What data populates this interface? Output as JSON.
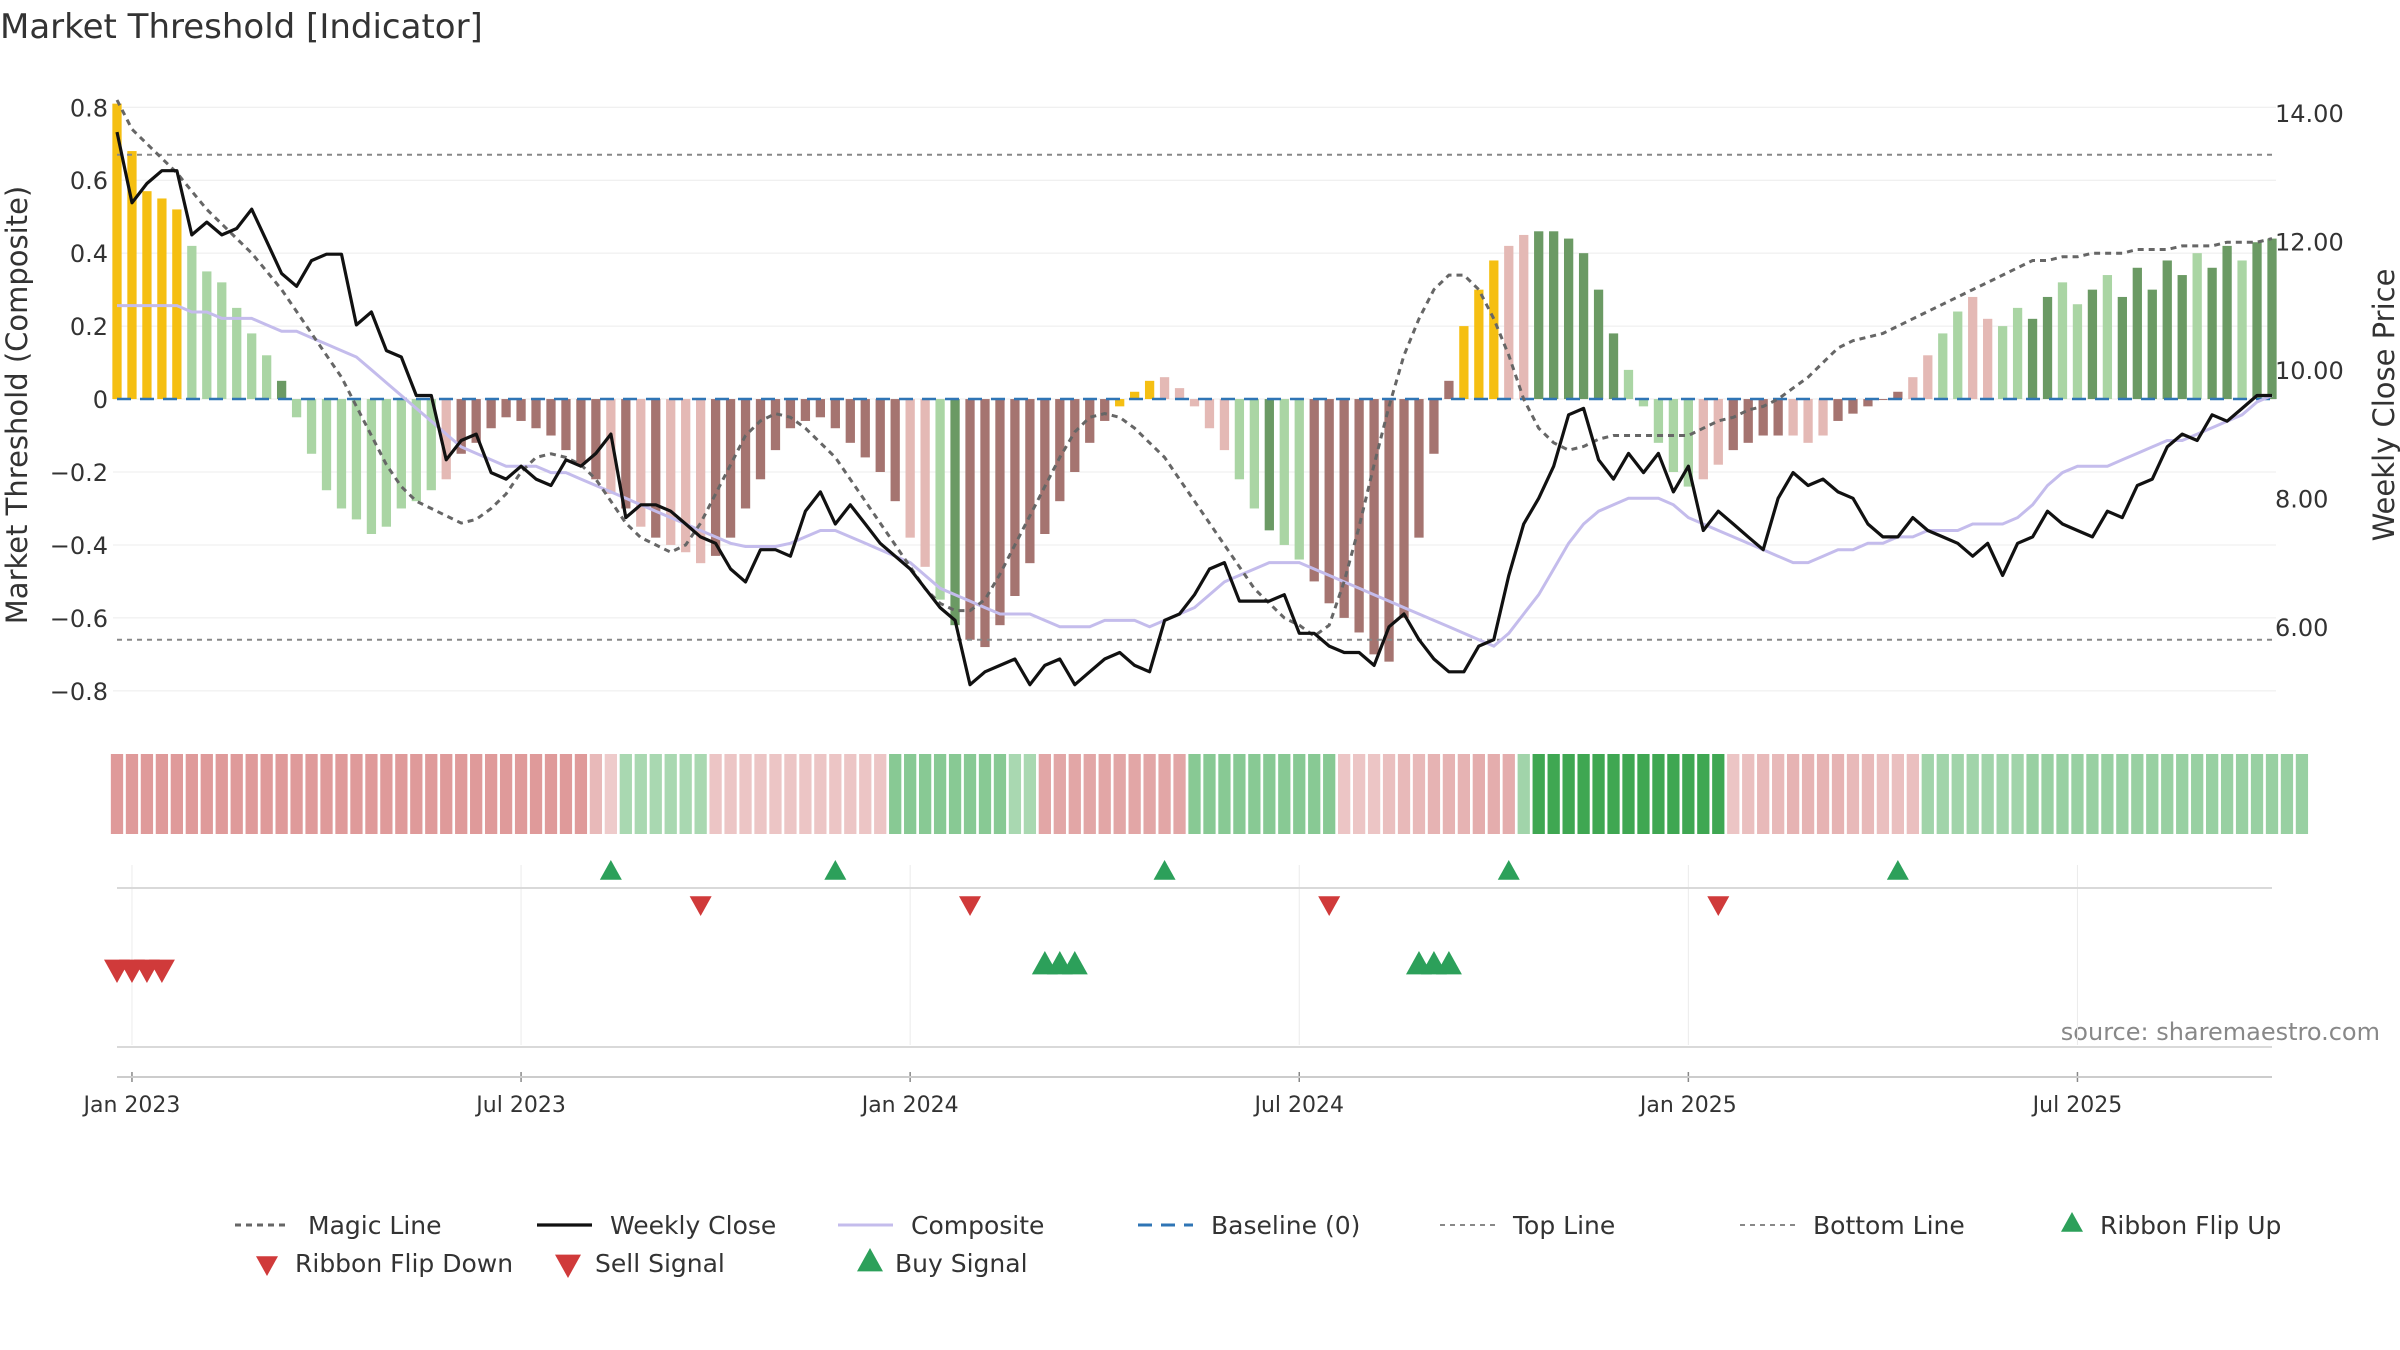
{
  "chart_data": {
    "type": "bar+line",
    "title": "Market Threshold [Indicator]",
    "ylabel_left": "Market Threshold (Composite)",
    "ylabel_right": "Weekly Close Price",
    "ylim_left": [
      -0.88,
      0.82
    ],
    "ylim_right": [
      4.55,
      14.2
    ],
    "yticks_left": [
      "0.8",
      "0.6",
      "0.4",
      "0.2",
      "0",
      "−0.2",
      "−0.4",
      "−0.6",
      "−0.8"
    ],
    "yticks_left_values": [
      0.8,
      0.6,
      0.4,
      0.2,
      0,
      -0.2,
      -0.4,
      -0.6,
      -0.8
    ],
    "yticks_right": [
      "14.00",
      "12.00",
      "10.00",
      "8.00",
      "6.00"
    ],
    "yticks_right_values": [
      14,
      12,
      10,
      8,
      6
    ],
    "xticks": [
      "Jan 2023",
      "Jul 2023",
      "Jan 2024",
      "Jul 2024",
      "Jan 2025",
      "Jul 2025"
    ],
    "xticks_week": [
      1,
      27,
      53,
      79,
      105,
      131
    ],
    "weeks_total": 145,
    "top_line": 0.67,
    "bottom_line": -0.66,
    "composite": [
      0.81,
      0.68,
      0.57,
      0.55,
      0.52,
      0.42,
      0.35,
      0.32,
      0.25,
      0.18,
      0.12,
      0.05,
      -0.05,
      -0.15,
      -0.25,
      -0.3,
      -0.33,
      -0.37,
      -0.35,
      -0.3,
      -0.28,
      -0.25,
      -0.22,
      -0.15,
      -0.12,
      -0.08,
      -0.05,
      -0.06,
      -0.08,
      -0.1,
      -0.14,
      -0.18,
      -0.22,
      -0.26,
      -0.3,
      -0.35,
      -0.38,
      -0.4,
      -0.42,
      -0.45,
      -0.43,
      -0.38,
      -0.3,
      -0.22,
      -0.14,
      -0.08,
      -0.06,
      -0.05,
      -0.08,
      -0.12,
      -0.16,
      -0.2,
      -0.28,
      -0.38,
      -0.46,
      -0.55,
      -0.62,
      -0.66,
      -0.68,
      -0.62,
      -0.54,
      -0.45,
      -0.37,
      -0.28,
      -0.2,
      -0.12,
      -0.06,
      -0.02,
      0.02,
      0.05,
      0.06,
      0.03,
      -0.02,
      -0.08,
      -0.14,
      -0.22,
      -0.3,
      -0.36,
      -0.4,
      -0.44,
      -0.5,
      -0.56,
      -0.6,
      -0.64,
      -0.7,
      -0.72,
      -0.6,
      -0.38,
      -0.15,
      0.05,
      0.2,
      0.3,
      0.38,
      0.42,
      0.45,
      0.46,
      0.46,
      0.44,
      0.4,
      0.3,
      0.18,
      0.08,
      -0.02,
      -0.12,
      -0.2,
      -0.24,
      -0.22,
      -0.18,
      -0.14,
      -0.12,
      -0.1,
      -0.1,
      -0.1,
      -0.12,
      -0.1,
      -0.06,
      -0.04,
      -0.02,
      0.0,
      0.02,
      0.06,
      0.12,
      0.18,
      0.24,
      0.28,
      0.22,
      0.2,
      0.25,
      0.22,
      0.28,
      0.32,
      0.26,
      0.3,
      0.34,
      0.28,
      0.36,
      0.3,
      0.38,
      0.34,
      0.4,
      0.36,
      0.42,
      0.38,
      0.43,
      0.44
    ],
    "bar_colors": [
      "#f5bf12",
      "#f5bf12",
      "#f5bf12",
      "#f5bf12",
      "#f5bf12",
      "#aad5a4",
      "#aad5a4",
      "#aad5a4",
      "#aad5a4",
      "#aad5a4",
      "#aad5a4",
      "#6b9a64",
      "#aad5a4",
      "#aad5a4",
      "#aad5a4",
      "#aad5a4",
      "#aad5a4",
      "#aad5a4",
      "#aad5a4",
      "#aad5a4",
      "#aad5a4",
      "#aad5a4",
      "#e4b9b5",
      "#a57470",
      "#a57470",
      "#a57470",
      "#a57470",
      "#a57470",
      "#a57470",
      "#a57470",
      "#a57470",
      "#a57470",
      "#a57470",
      "#e4b9b5",
      "#a57470",
      "#e4b9b5",
      "#a57470",
      "#e4b9b5",
      "#e4b9b5",
      "#e4b9b5",
      "#a57470",
      "#a57470",
      "#a57470",
      "#a57470",
      "#a57470",
      "#a57470",
      "#a57470",
      "#a57470",
      "#a57470",
      "#a57470",
      "#a57470",
      "#a57470",
      "#a57470",
      "#e4b9b5",
      "#e4b9b5",
      "#aad5a4",
      "#6b9a64",
      "#a57470",
      "#a57470",
      "#a57470",
      "#a57470",
      "#a57470",
      "#a57470",
      "#a57470",
      "#a57470",
      "#a57470",
      "#a57470",
      "#f5bf12",
      "#f5bf12",
      "#f5bf12",
      "#e4b9b5",
      "#e4b9b5",
      "#e4b9b5",
      "#e4b9b5",
      "#e4b9b5",
      "#aad5a4",
      "#aad5a4",
      "#6b9a64",
      "#aad5a4",
      "#aad5a4",
      "#a57470",
      "#a57470",
      "#a57470",
      "#a57470",
      "#a57470",
      "#a57470",
      "#a57470",
      "#a57470",
      "#a57470",
      "#a57470",
      "#f5bf12",
      "#f5bf12",
      "#f5bf12",
      "#e4b9b5",
      "#e4b9b5",
      "#6b9a64",
      "#6b9a64",
      "#6b9a64",
      "#6b9a64",
      "#6b9a64",
      "#6b9a64",
      "#aad5a4",
      "#aad5a4",
      "#aad5a4",
      "#aad5a4",
      "#aad5a4",
      "#e4b9b5",
      "#e4b9b5",
      "#a57470",
      "#a57470",
      "#a57470",
      "#a57470",
      "#e4b9b5",
      "#e4b9b5",
      "#e4b9b5",
      "#a57470",
      "#a57470",
      "#a57470",
      "#a57470",
      "#a57470",
      "#e4b9b5",
      "#e4b9b5",
      "#aad5a4",
      "#aad5a4",
      "#e4b9b5",
      "#e4b9b5",
      "#aad5a4",
      "#aad5a4",
      "#6b9a64",
      "#6b9a64",
      "#aad5a4",
      "#aad5a4",
      "#6b9a64",
      "#aad5a4",
      "#6b9a64",
      "#6b9a64",
      "#6b9a64",
      "#6b9a64",
      "#6b9a64",
      "#aad5a4",
      "#6b9a64",
      "#6b9a64",
      "#aad5a4",
      "#6b9a64",
      "#6b9a64",
      "#6b9a64",
      "#6b9a64",
      "#6b9a64"
    ],
    "weekly_close": [
      13.7,
      12.6,
      12.9,
      13.1,
      13.1,
      12.1,
      12.3,
      12.1,
      12.2,
      12.5,
      12.0,
      11.5,
      11.3,
      11.7,
      11.8,
      11.8,
      10.7,
      10.9,
      10.3,
      10.2,
      9.6,
      9.6,
      8.6,
      8.9,
      9.0,
      8.4,
      8.3,
      8.5,
      8.3,
      8.2,
      8.6,
      8.5,
      8.7,
      9.0,
      7.7,
      7.9,
      7.9,
      7.8,
      7.6,
      7.4,
      7.3,
      6.9,
      6.7,
      7.2,
      7.2,
      7.1,
      7.8,
      8.1,
      7.6,
      7.9,
      7.6,
      7.3,
      7.1,
      6.9,
      6.6,
      6.3,
      6.1,
      5.1,
      5.3,
      5.4,
      5.5,
      5.1,
      5.4,
      5.5,
      5.1,
      5.3,
      5.5,
      5.6,
      5.4,
      5.3,
      6.1,
      6.2,
      6.5,
      6.9,
      7.0,
      6.4,
      6.4,
      6.4,
      6.5,
      5.9,
      5.9,
      5.7,
      5.6,
      5.6,
      5.4,
      6.0,
      6.2,
      5.8,
      5.5,
      5.3,
      5.3,
      5.7,
      5.8,
      6.8,
      7.6,
      8.0,
      8.5,
      9.3,
      9.4,
      8.6,
      8.3,
      8.7,
      8.4,
      8.7,
      8.1,
      8.5,
      7.5,
      7.8,
      7.6,
      7.4,
      7.2,
      8.0,
      8.4,
      8.2,
      8.3,
      8.1,
      8.0,
      7.6,
      7.4,
      7.4,
      7.7,
      7.5,
      7.4,
      7.3,
      7.1,
      7.3,
      6.8,
      7.3,
      7.4,
      7.8,
      7.6,
      7.5,
      7.4,
      7.8,
      7.7,
      8.2,
      8.3,
      8.8,
      9.0,
      8.9,
      9.3,
      9.2,
      9.4,
      9.6,
      9.6
    ],
    "composite_smooth": [
      11.0,
      11.0,
      11.0,
      11.0,
      11.0,
      10.9,
      10.9,
      10.8,
      10.8,
      10.8,
      10.7,
      10.6,
      10.6,
      10.5,
      10.4,
      10.3,
      10.2,
      10.0,
      9.8,
      9.6,
      9.4,
      9.2,
      9.0,
      8.8,
      8.7,
      8.6,
      8.5,
      8.5,
      8.5,
      8.4,
      8.4,
      8.3,
      8.2,
      8.1,
      8.0,
      7.9,
      7.8,
      7.7,
      7.6,
      7.5,
      7.4,
      7.3,
      7.25,
      7.25,
      7.25,
      7.3,
      7.4,
      7.5,
      7.5,
      7.4,
      7.3,
      7.2,
      7.1,
      7.0,
      6.8,
      6.6,
      6.5,
      6.4,
      6.3,
      6.2,
      6.2,
      6.2,
      6.1,
      6.0,
      6.0,
      6.0,
      6.1,
      6.1,
      6.1,
      6.0,
      6.1,
      6.2,
      6.3,
      6.5,
      6.7,
      6.8,
      6.9,
      7.0,
      7.0,
      7.0,
      6.9,
      6.8,
      6.7,
      6.6,
      6.5,
      6.4,
      6.3,
      6.2,
      6.1,
      6.0,
      5.9,
      5.8,
      5.7,
      5.9,
      6.2,
      6.5,
      6.9,
      7.3,
      7.6,
      7.8,
      7.9,
      8.0,
      8.0,
      8.0,
      7.9,
      7.7,
      7.6,
      7.5,
      7.4,
      7.3,
      7.2,
      7.1,
      7.0,
      7.0,
      7.1,
      7.2,
      7.2,
      7.3,
      7.3,
      7.4,
      7.4,
      7.5,
      7.5,
      7.5,
      7.6,
      7.6,
      7.6,
      7.7,
      7.9,
      8.2,
      8.4,
      8.5,
      8.5,
      8.5,
      8.6,
      8.7,
      8.8,
      8.9,
      8.9,
      9.0,
      9.1,
      9.2,
      9.3,
      9.5,
      9.6
    ],
    "magic_line": [
      0.82,
      0.74,
      0.7,
      0.66,
      0.62,
      0.57,
      0.52,
      0.48,
      0.44,
      0.4,
      0.35,
      0.3,
      0.24,
      0.18,
      0.12,
      0.06,
      -0.02,
      -0.1,
      -0.18,
      -0.24,
      -0.28,
      -0.3,
      -0.32,
      -0.34,
      -0.33,
      -0.3,
      -0.26,
      -0.2,
      -0.16,
      -0.15,
      -0.16,
      -0.18,
      -0.22,
      -0.28,
      -0.34,
      -0.38,
      -0.4,
      -0.42,
      -0.4,
      -0.34,
      -0.26,
      -0.18,
      -0.1,
      -0.06,
      -0.04,
      -0.05,
      -0.08,
      -0.12,
      -0.16,
      -0.22,
      -0.28,
      -0.34,
      -0.4,
      -0.46,
      -0.52,
      -0.56,
      -0.58,
      -0.58,
      -0.55,
      -0.48,
      -0.4,
      -0.32,
      -0.24,
      -0.16,
      -0.09,
      -0.05,
      -0.04,
      -0.05,
      -0.08,
      -0.12,
      -0.16,
      -0.22,
      -0.28,
      -0.34,
      -0.4,
      -0.46,
      -0.52,
      -0.56,
      -0.6,
      -0.62,
      -0.65,
      -0.62,
      -0.5,
      -0.35,
      -0.18,
      -0.02,
      0.12,
      0.22,
      0.3,
      0.34,
      0.34,
      0.3,
      0.22,
      0.12,
      0.0,
      -0.08,
      -0.12,
      -0.14,
      -0.13,
      -0.11,
      -0.1,
      -0.1,
      -0.1,
      -0.1,
      -0.1,
      -0.1,
      -0.08,
      -0.06,
      -0.05,
      -0.03,
      -0.02,
      0.0,
      0.03,
      0.06,
      0.1,
      0.14,
      0.16,
      0.17,
      0.18,
      0.2,
      0.22,
      0.24,
      0.26,
      0.28,
      0.3,
      0.32,
      0.34,
      0.36,
      0.38,
      0.38,
      0.39,
      0.39,
      0.4,
      0.4,
      0.4,
      0.41,
      0.41,
      0.41,
      0.42,
      0.42,
      0.42,
      0.43,
      0.43,
      0.43,
      0.44
    ],
    "ribbon": [
      -0.55,
      -0.55,
      -0.55,
      -0.55,
      -0.55,
      -0.55,
      -0.55,
      -0.55,
      -0.55,
      -0.55,
      -0.55,
      -0.55,
      -0.55,
      -0.55,
      -0.55,
      -0.55,
      -0.55,
      -0.55,
      -0.55,
      -0.55,
      -0.55,
      -0.55,
      -0.55,
      -0.55,
      -0.55,
      -0.55,
      -0.55,
      -0.55,
      -0.55,
      -0.55,
      -0.55,
      -0.55,
      -0.3,
      -0.15,
      0.25,
      0.25,
      0.25,
      0.25,
      0.25,
      0.25,
      -0.2,
      -0.2,
      -0.2,
      -0.2,
      -0.2,
      -0.2,
      -0.2,
      -0.2,
      -0.2,
      -0.2,
      -0.2,
      -0.2,
      0.45,
      0.45,
      0.45,
      0.45,
      0.45,
      0.45,
      0.45,
      0.45,
      0.25,
      0.25,
      -0.45,
      -0.45,
      -0.45,
      -0.45,
      -0.45,
      -0.45,
      -0.45,
      -0.45,
      -0.45,
      -0.45,
      0.45,
      0.45,
      0.45,
      0.45,
      0.45,
      0.45,
      0.45,
      0.45,
      0.45,
      0.45,
      -0.2,
      -0.2,
      -0.2,
      -0.25,
      -0.3,
      -0.3,
      -0.35,
      -0.35,
      -0.35,
      -0.4,
      -0.4,
      -0.4,
      0.3,
      0.9,
      0.9,
      0.9,
      0.9,
      0.9,
      0.9,
      0.9,
      0.9,
      0.9,
      0.9,
      0.9,
      0.9,
      0.9,
      -0.2,
      -0.25,
      -0.3,
      -0.3,
      -0.35,
      -0.35,
      -0.35,
      -0.35,
      -0.3,
      -0.3,
      -0.25,
      -0.25,
      -0.25,
      0.3,
      0.3,
      0.3,
      0.3,
      0.3,
      0.3,
      0.3,
      0.35,
      0.35,
      0.35,
      0.35,
      0.35,
      0.35,
      0.35,
      0.35,
      0.35,
      0.35,
      0.35,
      0.35,
      0.35,
      0.35,
      0.35,
      0.35,
      0.35,
      0.35,
      0.35
    ],
    "ribbon_flip_up_weeks": [
      33,
      48,
      70,
      93,
      119
    ],
    "ribbon_flip_down_weeks": [
      39,
      57,
      81,
      107
    ],
    "sell_signal_weeks": [
      0,
      1,
      2,
      3
    ],
    "buy_signal_weeks": [
      62,
      63,
      64,
      87,
      88,
      89
    ],
    "colors": {
      "bar_strong_up": "#6b9a64",
      "bar_weak_up": "#aad5a4",
      "bar_strong_down": "#a57470",
      "bar_weak_down": "#e4b9b5",
      "bar_extreme": "#f5bf12",
      "weekly_close": "#111111",
      "composite": "#c4bcec",
      "magic_line": "#666666",
      "baseline": "#2f75b5",
      "flip_up": "#2ca05a",
      "flip_down": "#d03a3a"
    },
    "legend": [
      {
        "key": "magic",
        "label": "Magic Line"
      },
      {
        "key": "close",
        "label": "Weekly Close"
      },
      {
        "key": "composite",
        "label": "Composite"
      },
      {
        "key": "baseline",
        "label": "Baseline (0)"
      },
      {
        "key": "top",
        "label": "Top Line"
      },
      {
        "key": "bottom",
        "label": "Bottom Line"
      },
      {
        "key": "flipup",
        "label": "Ribbon Flip Up"
      },
      {
        "key": "flipdown",
        "label": "Ribbon Flip Down"
      },
      {
        "key": "sell",
        "label": "Sell Signal"
      },
      {
        "key": "buy",
        "label": "Buy Signal"
      }
    ],
    "legend_placement": "bottom",
    "source_note": "source: sharemaestro.com"
  }
}
